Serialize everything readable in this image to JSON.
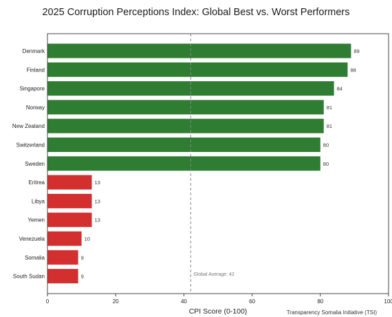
{
  "chart_data": {
    "type": "bar",
    "orientation": "horizontal",
    "title": "2025 Corruption Perceptions Index: Global Best vs. Worst Performers",
    "xlabel": "CPI Score (0-100)",
    "ylabel": "",
    "xlim": [
      0,
      100
    ],
    "xticks": [
      0,
      20,
      40,
      60,
      80,
      100
    ],
    "grid": false,
    "categories": [
      "Denmark",
      "Finland",
      "Singapore",
      "Norway",
      "New Zealand",
      "Switzerland",
      "Sweden",
      "Eritrea",
      "Libya",
      "Yemen",
      "Venezuela",
      "Somalia",
      "South Sudan"
    ],
    "values": [
      89,
      88,
      84,
      81,
      81,
      80,
      80,
      13,
      13,
      13,
      10,
      9,
      9
    ],
    "bar_colors": [
      "#2e7d32",
      "#2e7d32",
      "#2e7d32",
      "#2e7d32",
      "#2e7d32",
      "#2e7d32",
      "#2e7d32",
      "#d32f2f",
      "#d32f2f",
      "#d32f2f",
      "#d32f2f",
      "#d32f2f",
      "#d32f2f"
    ],
    "reference_line": {
      "value": 42,
      "label": "Global Average: 42",
      "style": "dashed",
      "color": "#888888"
    },
    "source_note": "Transparency Somalia Initiative (TSI)"
  }
}
